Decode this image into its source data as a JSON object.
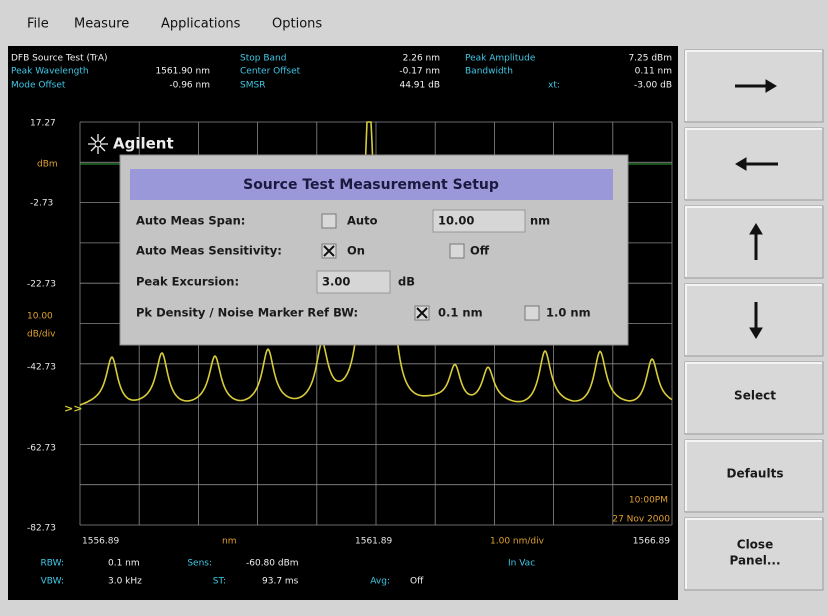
{
  "menu": [
    "File",
    "Measure",
    "Applications",
    "Options"
  ],
  "header": {
    "title": "DFB Source Test (TrA)",
    "fields": [
      {
        "label": "Peak Wavelength",
        "value": "1561.90 nm"
      },
      {
        "label": "Mode Offset",
        "value": "-0.96 nm"
      },
      {
        "label": "Stop Band",
        "value": "2.26 nm"
      },
      {
        "label": "Center Offset",
        "value": "-0.17 nm"
      },
      {
        "label": "SMSR",
        "value": "44.91 dB"
      },
      {
        "label": "Peak Amplitude",
        "value": "7.25 dBm"
      },
      {
        "label": "Bandwidth",
        "value": "0.11 nm"
      },
      {
        "label": "xt:",
        "value": "-3.00 dB"
      }
    ]
  },
  "graph": {
    "logo": "Agilent",
    "y_labels": [
      "17.27",
      "-2.73",
      "-22.73",
      "-42.73",
      "-62.73",
      "-82.73"
    ],
    "ref_unit": "dBm",
    "scale": "10.00",
    "scale_unit": "dB/div",
    "x_start": "1556.89",
    "x_unit": "nm",
    "x_center": "1561.89",
    "x_span": "1.00 nm/div",
    "x_stop": "1566.89",
    "time": "10:00PM",
    "date": "27 Nov 2000"
  },
  "dialog": {
    "title": "Source Test Measurement Setup",
    "span_label": "Auto Meas Span:",
    "span_auto": "Auto",
    "span_value": "10.00",
    "span_unit": "nm",
    "sens_label": "Auto Meas Sensitivity:",
    "sens_on": "On",
    "sens_off": "Off",
    "excursion_label": "Peak Excursion:",
    "excursion_value": "3.00",
    "excursion_unit": "dB",
    "bw_label": "Pk Density / Noise Marker Ref BW:",
    "bw_a": "0.1 nm",
    "bw_b": "1.0 nm"
  },
  "status": {
    "rbw_label": "RBW:",
    "rbw": "0.1 nm",
    "sens_label": "Sens:",
    "sens": "-60.80 dBm",
    "medium": "In Vac",
    "vbw_label": "VBW:",
    "vbw": "3.0 kHz",
    "st_label": "ST:",
    "st": "93.7 ms",
    "avg_label": "Avg:",
    "avg": "Off"
  },
  "buttons": {
    "select": "Select",
    "defaults": "Defaults",
    "close": [
      "Close",
      "Panel..."
    ]
  }
}
